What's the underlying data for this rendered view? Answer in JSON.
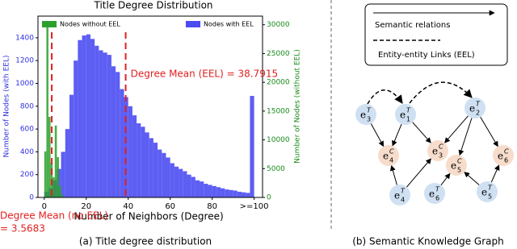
{
  "chart_data": {
    "type": "histogram",
    "title": "Title Degree Distribution",
    "xlabel": "Number of Neighbors (Degree)",
    "ylabel": "Number of Nodes (with EEL)",
    "y2label": "Number of Nodes (without EEL)",
    "xlim": [
      -3,
      104
    ],
    "ylim": [
      0,
      1590
    ],
    "y2lim": [
      0,
      31500
    ],
    "xticks": [
      0,
      20,
      40,
      60,
      80,
      {
        "value": 100,
        "label": ">=100"
      }
    ],
    "yticks": [
      0,
      200,
      400,
      600,
      800,
      1000,
      1200,
      1400
    ],
    "y2ticks": [
      0,
      5000,
      10000,
      15000,
      20000,
      25000,
      30000
    ],
    "series": [
      {
        "name": "Nodes with EEL",
        "color": "#4b4cf2",
        "axis": "y",
        "bins": [
          0,
          2,
          4,
          6,
          8,
          10,
          12,
          14,
          16,
          18,
          20,
          22,
          24,
          26,
          28,
          30,
          32,
          34,
          36,
          38,
          40,
          42,
          44,
          46,
          48,
          50,
          52,
          54,
          56,
          58,
          60,
          62,
          64,
          66,
          68,
          70,
          72,
          74,
          76,
          78,
          80,
          82,
          84,
          86,
          88,
          90,
          92,
          94,
          96,
          98,
          100
        ],
        "values": [
          50,
          80,
          150,
          250,
          400,
          600,
          900,
          1200,
          1380,
          1420,
          1430,
          1390,
          1330,
          1290,
          1270,
          1250,
          1150,
          1100,
          950,
          880,
          800,
          720,
          650,
          620,
          570,
          520,
          480,
          420,
          390,
          350,
          300,
          270,
          250,
          230,
          200,
          180,
          150,
          140,
          120,
          110,
          100,
          90,
          80,
          70,
          65,
          60,
          50,
          45,
          40,
          890
        ]
      },
      {
        "name": "Nodes without EEL",
        "color": "#2ca02c",
        "axis": "y2",
        "bins": [
          0,
          1,
          2,
          3,
          4,
          5,
          6,
          7,
          8,
          9
        ],
        "values": [
          8000,
          30500,
          14000,
          6000,
          3500,
          12500,
          7000,
          2000,
          500
        ]
      }
    ],
    "mean_lines": [
      {
        "value": 38.7915,
        "label": [
          "Degree Mean (EEL) = 38.7915"
        ],
        "color": "#e02020"
      },
      {
        "value": 3.5683,
        "label": [
          "Degree Mean (no EEL)",
          "= 3.5683"
        ],
        "color": "#e02020"
      }
    ],
    "caption": "(a) Title degree distribution"
  },
  "diagram": {
    "legend": [
      "Semantic relations",
      "Entity-entity Links (EEL)"
    ],
    "symbol": "e",
    "nodes": [
      {
        "sup": "T",
        "sub": "3"
      },
      {
        "sup": "T",
        "sub": "1"
      },
      {
        "sup": "T",
        "sub": "2"
      },
      {
        "sup": "C",
        "sub": "4"
      },
      {
        "sup": "C",
        "sub": "3"
      },
      {
        "sup": "C",
        "sub": "5"
      },
      {
        "sup": "C",
        "sub": "6"
      },
      {
        "sup": "T",
        "sub": "4"
      },
      {
        "sup": "T",
        "sub": "6"
      },
      {
        "sup": "T",
        "sub": "5"
      }
    ],
    "caption": "(b) Semantic Knowledge Graph"
  }
}
